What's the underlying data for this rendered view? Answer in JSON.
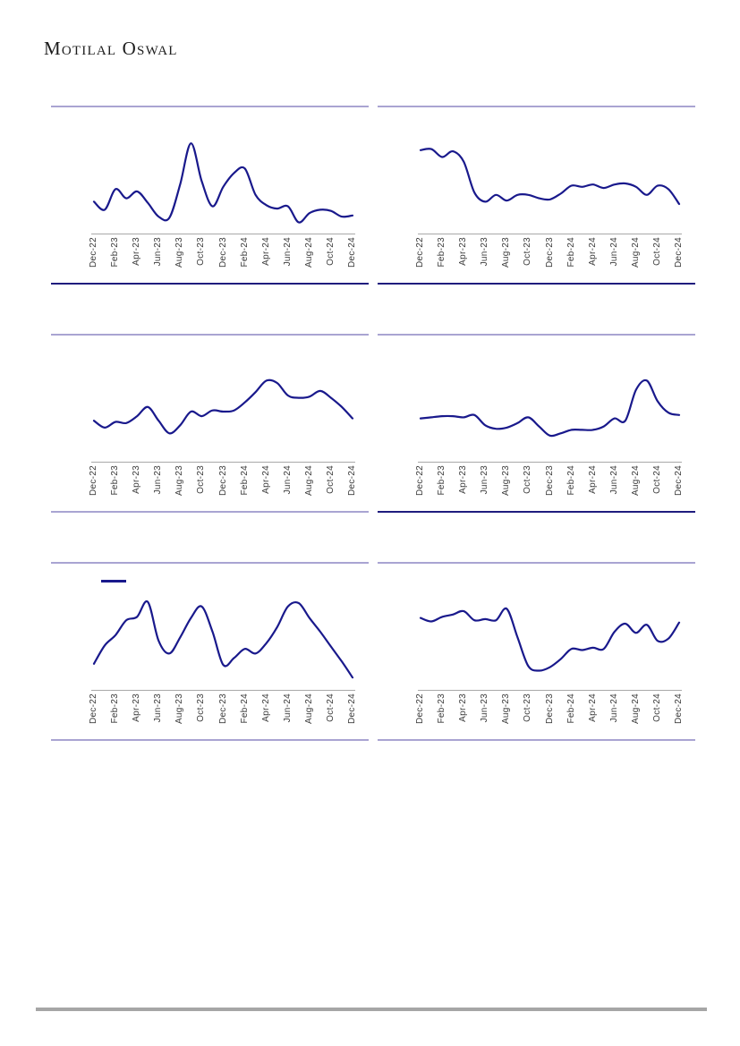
{
  "header": {
    "logo_text": "Motilal Oswal"
  },
  "colors": {
    "background": "#FFFFFF",
    "line_navy": "#19198C",
    "rule_navy": "#1F1C7E",
    "rule_lavender": "#A9A4D2",
    "axis_gray": "#A8A8A8",
    "tick_text": "#3A3A3A",
    "footer_gray": "#A6A6A6",
    "logo_text": "#1C1C1C"
  },
  "footer": {
    "rule_present": true
  },
  "chart_data": {
    "type": "line",
    "layout": "3 rows x 2 columns of identical-format smoothed line charts",
    "months": [
      "Dec-22",
      "Jan-23",
      "Feb-23",
      "Mar-23",
      "Apr-23",
      "May-23",
      "Jun-23",
      "Jul-23",
      "Aug-23",
      "Sep-23",
      "Oct-23",
      "Nov-23",
      "Dec-23",
      "Jan-24",
      "Feb-24",
      "Mar-24",
      "Apr-24",
      "May-24",
      "Jun-24",
      "Jul-24",
      "Aug-24",
      "Sep-24",
      "Oct-24",
      "Nov-24",
      "Dec-24"
    ],
    "x_tick_labels": [
      "Dec-22",
      "Feb-23",
      "Apr-23",
      "Jun-23",
      "Aug-23",
      "Oct-23",
      "Dec-23",
      "Feb-24",
      "Apr-24",
      "Jun-24",
      "Aug-24",
      "Oct-24",
      "Dec-24"
    ],
    "y_axis": "unlabeled in image; values are estimated normalized plot heights (0 = x-axis, 1 = plot top)",
    "ylim": [
      0,
      1
    ],
    "grid": "off",
    "line_color": "#19198C",
    "charts": [
      {
        "position": "top-left",
        "values": [
          0.27,
          0.2,
          0.38,
          0.3,
          0.36,
          0.26,
          0.14,
          0.13,
          0.42,
          0.78,
          0.45,
          0.23,
          0.4,
          0.52,
          0.56,
          0.33,
          0.24,
          0.21,
          0.23,
          0.09,
          0.17,
          0.2,
          0.19,
          0.14,
          0.15
        ],
        "bottom_rule": "navy",
        "legend_marker": false
      },
      {
        "position": "top-right",
        "values": [
          0.72,
          0.73,
          0.66,
          0.71,
          0.62,
          0.35,
          0.27,
          0.33,
          0.28,
          0.33,
          0.33,
          0.3,
          0.29,
          0.34,
          0.41,
          0.4,
          0.42,
          0.39,
          0.42,
          0.43,
          0.4,
          0.33,
          0.41,
          0.38,
          0.25
        ],
        "bottom_rule": "navy",
        "legend_marker": false
      },
      {
        "position": "middle-left",
        "values": [
          0.35,
          0.29,
          0.34,
          0.33,
          0.39,
          0.47,
          0.35,
          0.24,
          0.31,
          0.43,
          0.39,
          0.44,
          0.43,
          0.44,
          0.51,
          0.6,
          0.7,
          0.68,
          0.57,
          0.55,
          0.56,
          0.61,
          0.55,
          0.47,
          0.37
        ],
        "bottom_rule": "lavender",
        "legend_marker": false
      },
      {
        "position": "middle-right",
        "values": [
          0.37,
          0.38,
          0.39,
          0.39,
          0.38,
          0.4,
          0.31,
          0.28,
          0.29,
          0.33,
          0.38,
          0.3,
          0.22,
          0.24,
          0.27,
          0.27,
          0.27,
          0.3,
          0.37,
          0.35,
          0.62,
          0.7,
          0.52,
          0.42,
          0.4
        ],
        "bottom_rule": "navy",
        "legend_marker": false
      },
      {
        "position": "bottom-left",
        "values": [
          0.22,
          0.38,
          0.47,
          0.6,
          0.63,
          0.76,
          0.42,
          0.31,
          0.45,
          0.62,
          0.72,
          0.5,
          0.21,
          0.27,
          0.35,
          0.31,
          0.4,
          0.54,
          0.72,
          0.75,
          0.62,
          0.5,
          0.37,
          0.24,
          0.1
        ],
        "bottom_rule": "lavender",
        "legend_marker": true
      },
      {
        "position": "bottom-right",
        "values": [
          0.62,
          0.59,
          0.63,
          0.65,
          0.68,
          0.6,
          0.61,
          0.6,
          0.7,
          0.45,
          0.2,
          0.16,
          0.19,
          0.26,
          0.35,
          0.34,
          0.36,
          0.35,
          0.5,
          0.57,
          0.49,
          0.56,
          0.42,
          0.44,
          0.58
        ],
        "bottom_rule": "lavender",
        "legend_marker": false
      }
    ]
  }
}
